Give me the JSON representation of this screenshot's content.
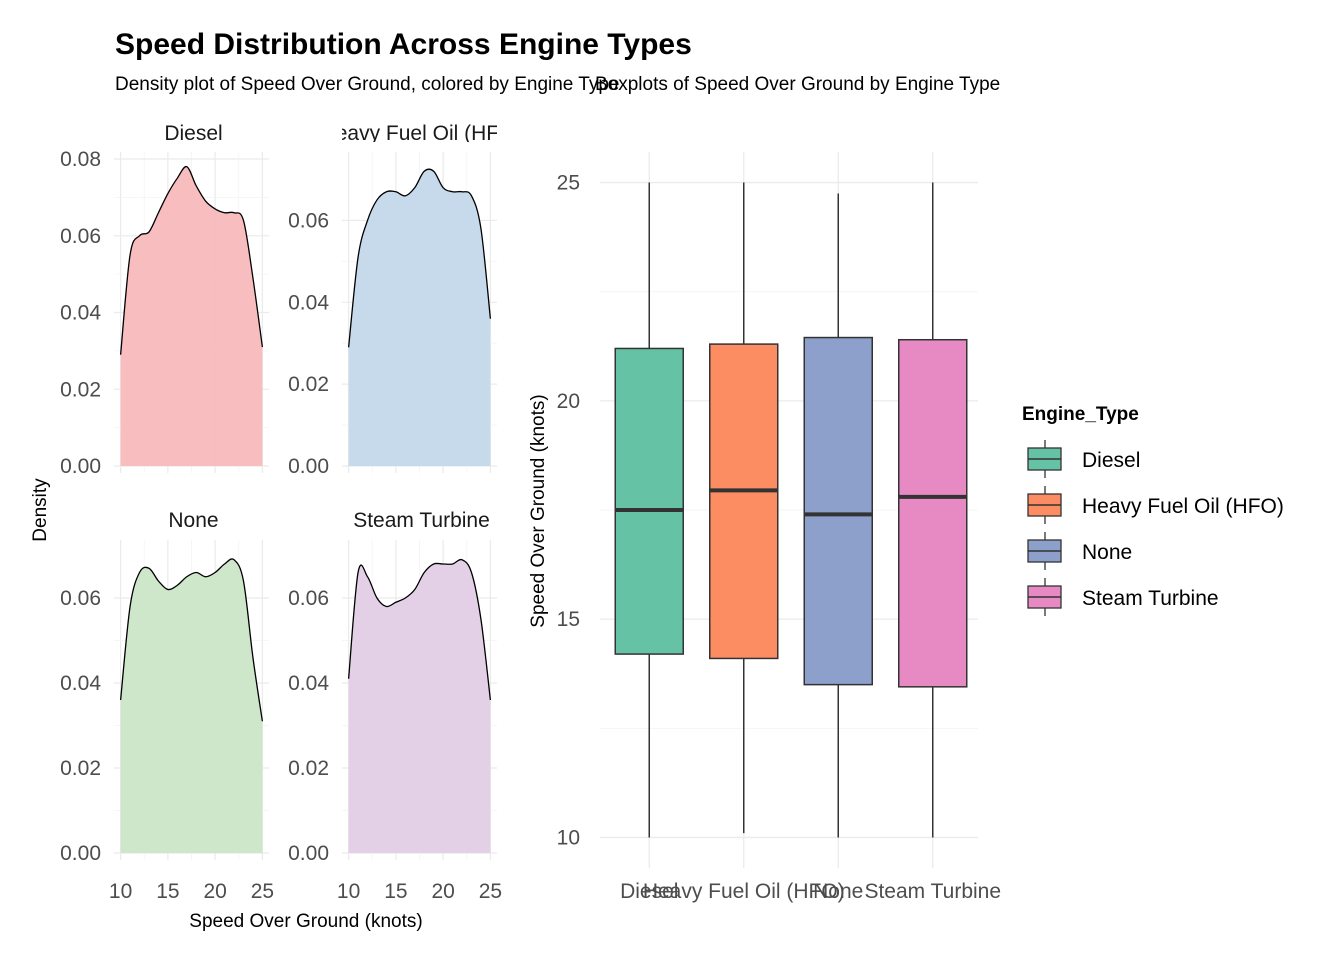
{
  "title": "Speed Distribution Across Engine Types",
  "density_subtitle": "Density plot of Speed Over Ground, colored by Engine Type",
  "box_subtitle": "Boxplots of Speed Over Ground by Engine Type",
  "chart_data": [
    {
      "type": "area",
      "subtitle": "Density plot of Speed Over Ground, colored by Engine Type",
      "xlabel": "Speed Over Ground (knots)",
      "ylabel": "Density",
      "xlim": [
        10,
        25
      ],
      "x_ticks": [
        10,
        15,
        20,
        25
      ],
      "facets": [
        {
          "name": "Diesel",
          "color": "#f8b9bc",
          "ylim": [
            0,
            0.08
          ],
          "y_ticks": [
            "0.00",
            "0.02",
            "0.04",
            "0.06",
            "0.08"
          ],
          "x": [
            10,
            11,
            12,
            13,
            14,
            15,
            16,
            17,
            18,
            19,
            20,
            21,
            22,
            23,
            24,
            25
          ],
          "y": [
            0.029,
            0.055,
            0.06,
            0.061,
            0.066,
            0.071,
            0.075,
            0.078,
            0.073,
            0.069,
            0.067,
            0.066,
            0.066,
            0.064,
            0.049,
            0.031
          ]
        },
        {
          "name": "Heavy Fuel Oil (HFO)",
          "color": "#c3d8ea",
          "ylim": [
            0,
            0.075
          ],
          "y_ticks": [
            "0.00",
            "0.02",
            "0.04",
            "0.06"
          ],
          "x": [
            10,
            11,
            12,
            13,
            14,
            15,
            16,
            17,
            18,
            19,
            20,
            21,
            22,
            23,
            24,
            25
          ],
          "y": [
            0.029,
            0.051,
            0.06,
            0.065,
            0.067,
            0.067,
            0.066,
            0.068,
            0.072,
            0.072,
            0.068,
            0.067,
            0.067,
            0.066,
            0.058,
            0.036
          ]
        },
        {
          "name": "None",
          "color": "#cbe6c8",
          "ylim": [
            0,
            0.072
          ],
          "y_ticks": [
            "0.00",
            "0.02",
            "0.04",
            "0.06"
          ],
          "x": [
            10,
            11,
            12,
            13,
            14,
            15,
            16,
            17,
            18,
            19,
            20,
            21,
            22,
            23,
            24,
            25
          ],
          "y": [
            0.036,
            0.058,
            0.066,
            0.067,
            0.064,
            0.062,
            0.063,
            0.065,
            0.066,
            0.065,
            0.066,
            0.068,
            0.069,
            0.064,
            0.046,
            0.031
          ]
        },
        {
          "name": "Steam Turbine",
          "color": "#e1cde6",
          "ylim": [
            0,
            0.072
          ],
          "y_ticks": [
            "0.00",
            "0.02",
            "0.04",
            "0.06"
          ],
          "x": [
            10,
            11,
            12,
            13,
            14,
            15,
            16,
            17,
            18,
            19,
            20,
            21,
            22,
            23,
            24,
            25
          ],
          "y": [
            0.041,
            0.066,
            0.065,
            0.06,
            0.058,
            0.059,
            0.06,
            0.062,
            0.066,
            0.068,
            0.068,
            0.068,
            0.069,
            0.066,
            0.055,
            0.036
          ]
        }
      ]
    },
    {
      "type": "box",
      "subtitle": "Boxplots of Speed Over Ground by Engine Type",
      "ylabel": "Speed Over Ground (knots)",
      "ylim": [
        9.3,
        25.7
      ],
      "y_ticks": [
        10,
        15,
        20,
        25
      ],
      "categories": [
        "Diesel",
        "Heavy Fuel Oil (HFO)",
        "None",
        "Steam Turbine"
      ],
      "series": [
        {
          "name": "Diesel",
          "color": "#66c2a5",
          "min": 10.0,
          "q1": 14.2,
          "median": 17.5,
          "q3": 21.2,
          "max": 25.0
        },
        {
          "name": "Heavy Fuel Oil (HFO)",
          "color": "#fc8d62",
          "min": 10.1,
          "q1": 14.1,
          "median": 17.95,
          "q3": 21.3,
          "max": 25.0
        },
        {
          "name": "None",
          "color": "#8da0cb",
          "min": 10.0,
          "q1": 13.5,
          "median": 17.4,
          "q3": 21.45,
          "max": 24.75
        },
        {
          "name": "Steam Turbine",
          "color": "#e78ac3",
          "min": 10.0,
          "q1": 13.45,
          "median": 17.8,
          "q3": 21.4,
          "max": 25.0
        }
      ],
      "legend": {
        "title": "Engine_Type",
        "position": "right"
      }
    }
  ]
}
